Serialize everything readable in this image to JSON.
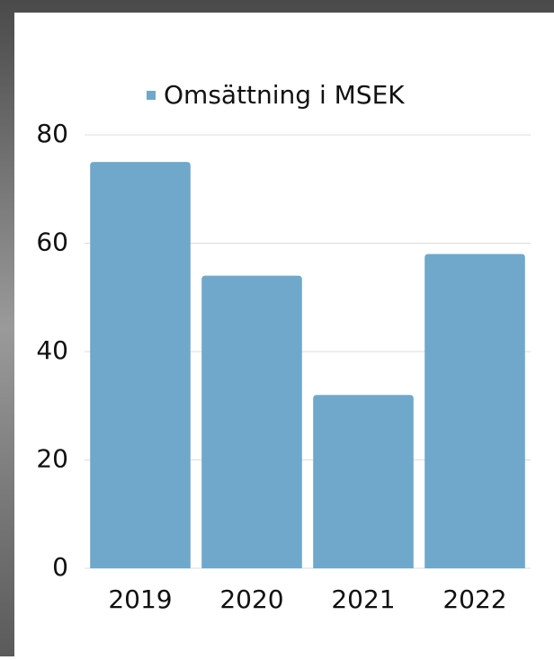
{
  "chart_data": {
    "type": "bar",
    "legend": "Omsättning i MSEK",
    "categories": [
      "2019",
      "2020",
      "2021",
      "2022"
    ],
    "values": [
      75,
      54,
      32,
      58
    ],
    "color": "#6fa8cb",
    "ylim": [
      0,
      80
    ],
    "yticks": [
      0,
      20,
      40,
      60,
      80
    ],
    "grid": true,
    "legend_position": "top"
  }
}
